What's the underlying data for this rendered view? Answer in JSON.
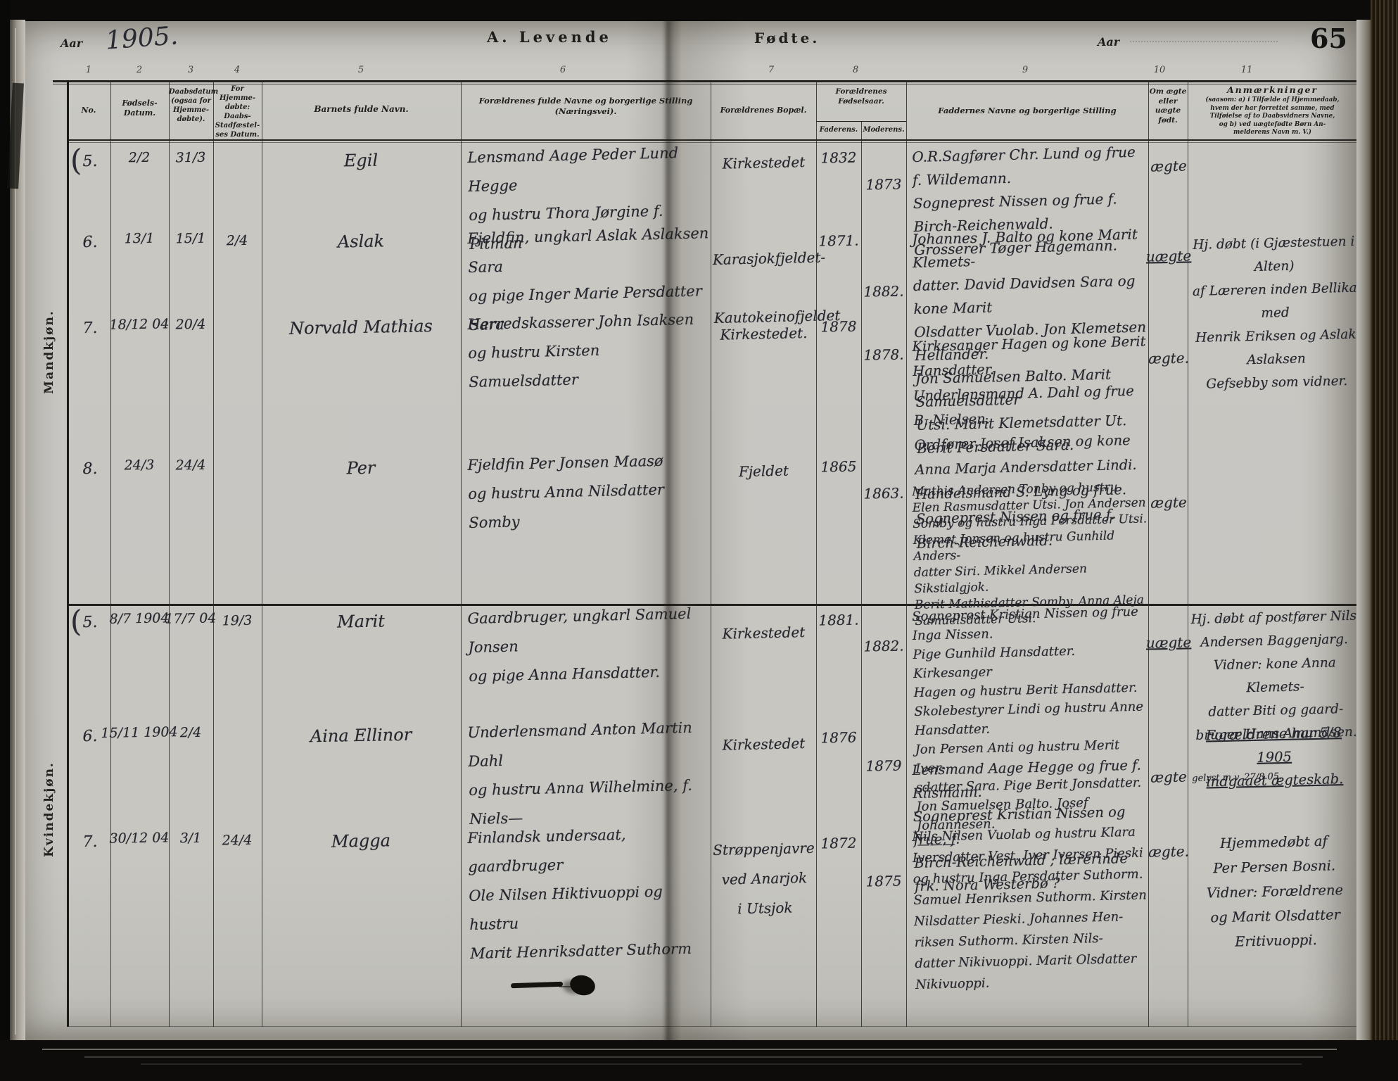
{
  "page": {
    "aar_label_left": "Aar",
    "year_handwritten": "1905.",
    "section_title_left": "A.  Levende",
    "section_title_right": "Fødte.",
    "aar_label_right": "Aar",
    "page_number": "65"
  },
  "table": {
    "column_numbers": [
      "1",
      "2",
      "3",
      "4",
      "5",
      "6",
      "7",
      "8",
      "9",
      "10",
      "11"
    ],
    "headers": {
      "no": "No.",
      "birth": "Fødsels-\nDatum.",
      "baptism": "Daabsdatum\n(ogsaa for\nHjemme-\ndøbte).",
      "home_baptism": "For Hjemme-\ndøbte:\nDaabs-\nStadfæstel-\nses Datum.",
      "child_name": "Barnets fulde Navn.",
      "parents": "Forældrenes fulde Navne og borgerlige Stilling\n(Næringsvei).",
      "residence": "Forældrenes Bopæl.",
      "birth_years": "Forældrenes\nFødselsaar.",
      "father": "Faderens.",
      "mother": "Moderens.",
      "sponsors": "Faddernes Navne og borgerlige Stilling",
      "legitimacy": "Om ægte\neller\nuægte\nfødt.",
      "remarks_title": "Anmærkninger",
      "remarks_body": "(saasom: a) i Tilfælde af Hjemmedaab,\nhvem der har forrettet samme, med\nTilføielse af to Daabsvidners Navne,\nog b) ved uægtefødte Børn An-\nmelderens Navn  m. V.)"
    }
  },
  "sections": [
    {
      "label": "Mandkjøn.",
      "entries": [
        {
          "no": "5.",
          "birth_date": "2/2",
          "baptism_date": "31/3",
          "home_baptism_date": "",
          "child_name": "Egil",
          "parents": "Lensmand Aage Peder Lund Hegge\nog hustru Thora Jørgine f. Pitman",
          "residence": "Kirkestedet",
          "father_year": "1832",
          "mother_year": "1873",
          "sponsors": "O.R.Sagfører Chr. Lund og frue f. Wildemann.\nSogneprest Nissen og frue f. Birch-Reichenwald.\nGrosserer Tøger Hagemann.",
          "legitimacy": "ægte",
          "legitimacy_underlined": false,
          "remarks": ""
        },
        {
          "no": "6.",
          "birth_date": "13/1",
          "baptism_date": "15/1",
          "home_baptism_date": "2/4",
          "child_name": "Aslak",
          "parents": "Fjeldfin, ungkarl Aslak Aslaksen Sara\nog pige Inger Marie Persdatter Sara",
          "residence": "Karasjokfjeldet-\nKautokeinofjeldet",
          "father_year": "1871.",
          "mother_year": "1882.",
          "sponsors": "Johannes J. Balto og kone Marit Klemets-\ndatter. David Davidsen Sara og kone Marit\nOlsdatter Vuolab. Jon Klemetsen Hellander.\nJon Samuelsen Balto. Marit Samuelsdatter\nUtsi. Marit Klemetsdatter Ut. Berit Persdatter Sara.",
          "legitimacy": "uægte",
          "legitimacy_underlined": true,
          "remarks": "Hj. døbt (i Gjæstestuen i Alten)\naf Læreren inden Bellika med\nHenrik Eriksen og Aslak Aslaksen\nGefsebby som vidner."
        },
        {
          "no": "7.",
          "birth_date": "18/12 04",
          "baptism_date": "20/4",
          "home_baptism_date": "",
          "child_name": "Norvald Mathias",
          "parents": "Herredskasserer John Isaksen\nog hustru Kirsten Samuelsdatter",
          "residence": "Kirkestedet.",
          "father_year": "1878",
          "mother_year": "1878.",
          "sponsors": "Kirkesanger Hagen og kone Berit Hansdatter.\nUnderlensmand A. Dahl og frue B. Nielsen.\nOrdfører Josef Isaksen og kone\nAnna Marja Andersdatter Lindi.\nHandelsmand S. Lyng og frue.\nSogneprest Nissen og frue f. Birch-Reichenwald.",
          "legitimacy": "ægte.",
          "legitimacy_underlined": false,
          "remarks": ""
        },
        {
          "no": "8.",
          "birth_date": "24/3",
          "baptism_date": "24/4",
          "home_baptism_date": "",
          "child_name": "Per",
          "parents": "Fjeldfin Per Jonsen Maasø\nog hustru Anna Nilsdatter Somby",
          "residence": "Fjeldet",
          "father_year": "1865",
          "mother_year": "1863.",
          "sponsors": "Mathis Andersen Tonby og hustru\nElen Rasmusdatter Utsi. Jon Andersen\nSomby og hustru Inga Persdatter Utsi.\nKlemet Jonsen og hustru Gunhild Anders-\ndatter Siri. Mikkel Andersen Sikstialgjok.\nBerit Mathisdatter Somby. Anna Aleja\nSamuelsdatter Utsi.",
          "legitimacy": "ægte",
          "legitimacy_underlined": false,
          "remarks": ""
        }
      ]
    },
    {
      "label": "Kvindekjøn.",
      "entries": [
        {
          "no": "5.",
          "birth_date": "8/7 1904",
          "baptism_date": "17/7 04",
          "home_baptism_date": "19/3",
          "child_name": "Marit",
          "parents": "Gaardbruger, ungkarl Samuel Jonsen\nog pige Anna Hansdatter.",
          "residence": "Kirkestedet",
          "father_year": "1881.",
          "mother_year": "1882.",
          "sponsors": "Sogneprest Kristian Nissen og frue Inga Nissen.\nPige Gunhild Hansdatter. Kirkesanger\nHagen og hustru Berit Hansdatter.\nSkolebestyrer Lindi og hustru Anne Hansdatter.\nJon Persen Anti og hustru Merit Iver-\nsdatter Sara. Pige Berit Jonsdatter.\nJon Samuelsen Balto. Josef Johannesen.\n———",
          "legitimacy": "uægte",
          "legitimacy_underlined": true,
          "remarks": "Hj. døbt af postfører Nils\nAndersen Baggenjarg.\nVidner: kone Anna Klemets-\ndatter Biti og gaard-\nbruger Hans Amundsen.",
          "remarks_underlined": "Forældrene har 5/8 1905\nindgaaet ægteskab.",
          "remarks_note": "gelyst m.v. 27/8 05."
        },
        {
          "no": "6.",
          "birth_date": "15/11 1904",
          "baptism_date": "2/4",
          "home_baptism_date": "",
          "child_name": "Aina Ellinor",
          "parents": "Underlensmand Anton Martin Dahl\nog hustru Anna Wilhelmine, f. Niels—",
          "residence": "Kirkestedet",
          "father_year": "1876",
          "mother_year": "1879",
          "sponsors": "Lensmand Aage Hegge og frue f. Riismann.\nSogneprest Kristian Nissen og frue, f.\nBirch-Reichenwald ; lærerinde\nfrk. Nora Westerbø ?",
          "legitimacy": "ægte",
          "legitimacy_underlined": false,
          "remarks": ""
        },
        {
          "no": "7.",
          "birth_date": "30/12 04",
          "baptism_date": "3/1",
          "home_baptism_date": "24/4",
          "child_name": "Magga",
          "parents": "Finlandsk undersaat, gaardbruger\nOle Nilsen Hiktivuoppi og hustru\nMarit Henriksdatter Suthorm",
          "residence": "Strøppenjavre\nved Anarjok\ni Utsjok",
          "father_year": "1872",
          "mother_year": "1875",
          "sponsors": "Nils Nilsen Vuolab og hustru Klara\nIversdatter Vest. Iver Iversen Pieski\nog hustru Inga Persdatter Suthorm.\nSamuel Henriksen Suthorm. Kirsten\nNilsdatter Pieski. Johannes Hen-\nriksen Suthorm. Kirsten Nils-\ndatter Nikivuoppi. Marit Olsdatter\nNikivuoppi.",
          "legitimacy": "ægte.",
          "legitimacy_underlined": false,
          "remarks": "Hjemmedøbt af\nPer Persen Bosni.\nVidner: Forældrene\nog Marit Olsdatter\nEritivuoppi."
        }
      ]
    }
  ]
}
